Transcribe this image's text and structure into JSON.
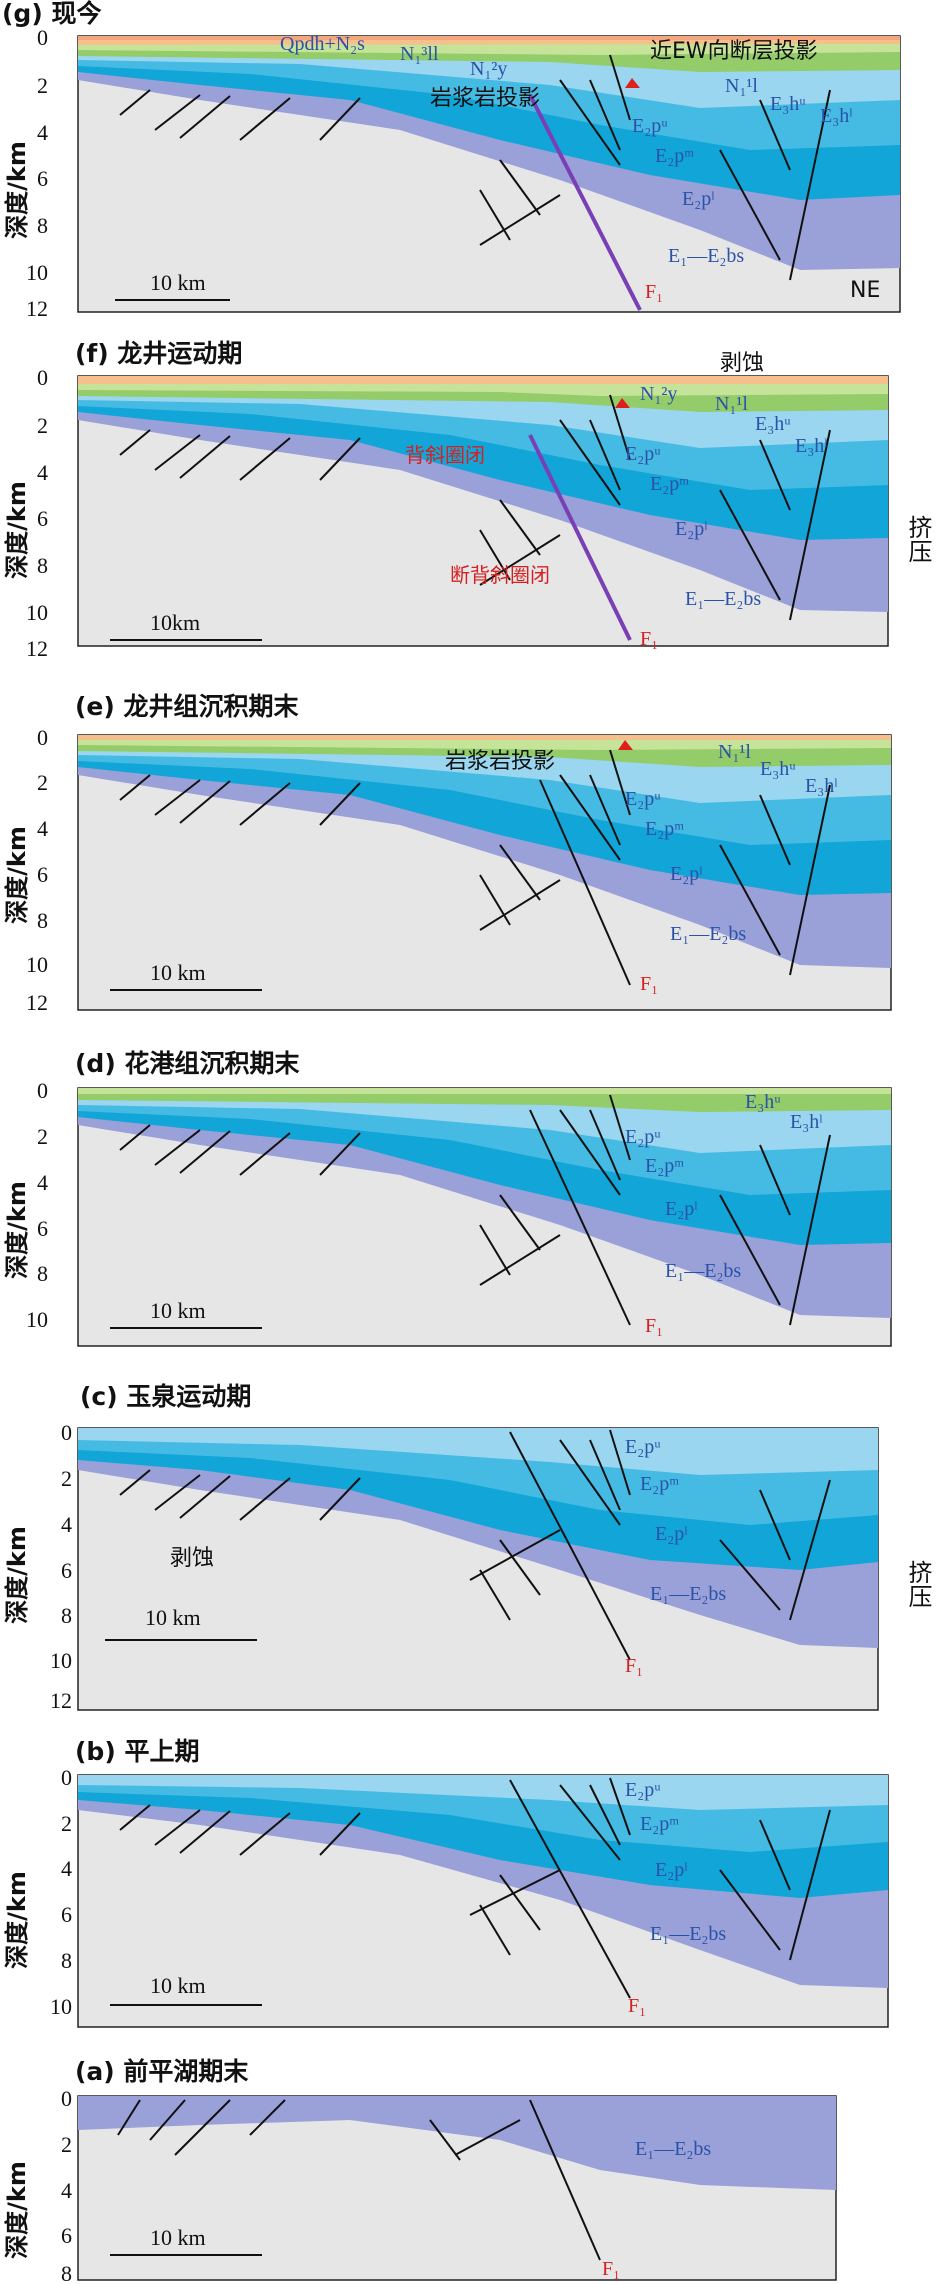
{
  "colors": {
    "basement": "#e6e6e6",
    "e1e2bs": "#9aa0d8",
    "e2pl": "#12a5d8",
    "e2pm": "#45bbe4",
    "e2pu": "#9ad6ef",
    "e3hl": "#93cc68",
    "e3hu": "#c6e39a",
    "n1l": "#f6c08c",
    "n1y": "#f3a77e",
    "n1ll": "#f7c9ad",
    "q": "#fde6d6",
    "fault": "#111111",
    "f1_present": "#7a3fb5",
    "red": "#e01e1e",
    "arrow_gray": "#9a9a9a",
    "arrow_cyan": "#27b5e6"
  },
  "y_axis_label": "深度/km",
  "scale_label": "10 km",
  "panels": [
    {
      "id": "g",
      "title": "(g) 现今",
      "ticks": [
        "0",
        "2",
        "4",
        "6",
        "8",
        "10",
        "12"
      ]
    },
    {
      "id": "f",
      "title": "(f) 龙井运动期",
      "ticks": [
        "0",
        "2",
        "4",
        "6",
        "8",
        "10",
        "12"
      ]
    },
    {
      "id": "e",
      "title": "(e) 龙井组沉积期末",
      "ticks": [
        "0",
        "2",
        "4",
        "6",
        "8",
        "10",
        "12"
      ]
    },
    {
      "id": "d",
      "title": "(d) 花港组沉积期末",
      "ticks": [
        "0",
        "2",
        "4",
        "6",
        "8",
        "10"
      ]
    },
    {
      "id": "c",
      "title": "(c) 玉泉运动期",
      "ticks": [
        "0",
        "2",
        "4",
        "6",
        "8",
        "10",
        "12"
      ]
    },
    {
      "id": "b",
      "title": "(b) 平上期",
      "ticks": [
        "0",
        "2",
        "4",
        "6",
        "8",
        "10"
      ]
    },
    {
      "id": "a",
      "title": "(a) 前平湖期末",
      "ticks": [
        "0",
        "2",
        "4",
        "6",
        "8"
      ]
    }
  ],
  "labels": {
    "f1": "F₁",
    "e1e2bs": "E₁—E₂bs",
    "e2pu": "E₂pᵘ",
    "e2pm": "E₂pᵐ",
    "e2pl": "E₂pˡ",
    "e3hu": "E₃hᵘ",
    "e3hl": "E₃hˡ",
    "n1l": "N₁¹l",
    "n1y": "N₁²y",
    "n1ll": "N₁³ll",
    "qn2s": "Qpdh+N₂s",
    "magma": "岩浆岩投影",
    "ew_fault": "近EW向断层投影",
    "ne": "NE",
    "erosion": "剥蚀",
    "compression": "挤压",
    "anticline": "背斜圈闭",
    "fault_anticline": "断背斜圈闭",
    "scale_10km_f": "10km"
  }
}
